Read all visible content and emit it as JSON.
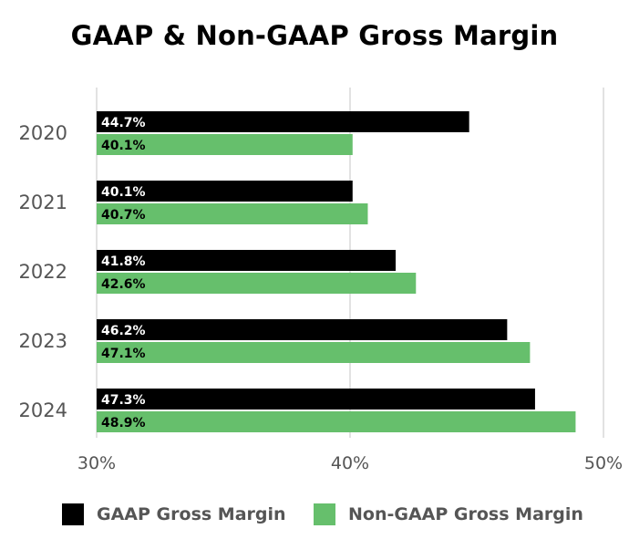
{
  "chart_data": {
    "type": "bar",
    "orientation": "horizontal",
    "title": "GAAP & Non-GAAP Gross Margin",
    "categories": [
      "2020",
      "2021",
      "2022",
      "2023",
      "2024"
    ],
    "series": [
      {
        "name": "GAAP Gross Margin",
        "color": "#000000",
        "label_color": "#ffffff",
        "values": [
          44.7,
          40.1,
          41.8,
          46.2,
          47.3
        ],
        "labels": [
          "44.7%",
          "40.1%",
          "41.8%",
          "46.2%",
          "47.3%"
        ]
      },
      {
        "name": "Non-GAAP Gross Margin",
        "color": "#66bf6c",
        "label_color": "#000000",
        "values": [
          40.1,
          40.7,
          42.6,
          47.1,
          48.9
        ],
        "labels": [
          "40.1%",
          "40.7%",
          "42.6%",
          "47.1%",
          "48.9%"
        ]
      }
    ],
    "xlim": [
      30,
      50
    ],
    "xticks": [
      30,
      40,
      50
    ],
    "xtick_labels": [
      "30%",
      "40%",
      "50%"
    ],
    "grid": true,
    "legend_position": "bottom"
  }
}
